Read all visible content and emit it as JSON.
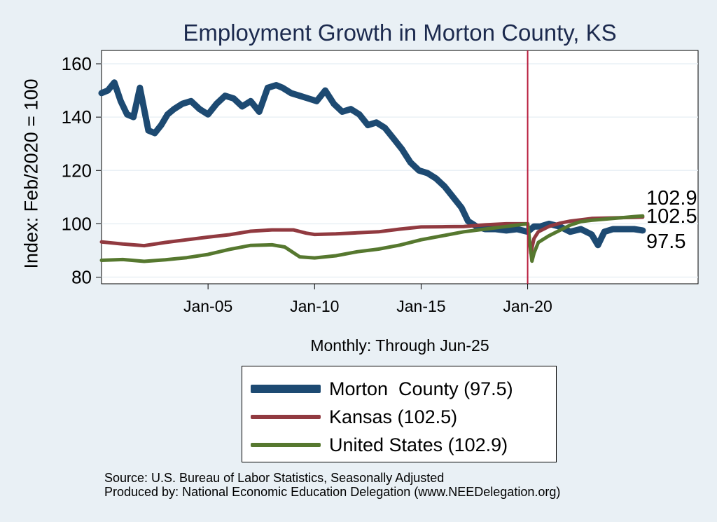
{
  "colors": {
    "background": "#e9f0f5",
    "plot_background": "#ffffff",
    "grid": "#e9f0f5",
    "morton": "#1d4a72",
    "kansas": "#913a40",
    "us": "#56782f",
    "refline": "#b81d3d"
  },
  "footer": {
    "source": "Source: U.S. Bureau of Labor Statistics, Seasonally Adjusted",
    "produced": "Produced by: National Economic Education Delegation (www.NEEDelegation.org)"
  },
  "chart_data": {
    "type": "line",
    "title": "Employment Growth in Morton  County, KS",
    "xlabel": "Monthly: Through Jun-25",
    "ylabel": "Index: Feb/2020 = 100",
    "x_start": "Jan-00",
    "x_end": "Jun-25",
    "xlim": [
      2000.0,
      2028.0
    ],
    "ylim": [
      77.5,
      165.0
    ],
    "xticks": [
      {
        "value": 2005.0,
        "label": "Jan-05"
      },
      {
        "value": 2010.0,
        "label": "Jan-10"
      },
      {
        "value": 2015.0,
        "label": "Jan-15"
      },
      {
        "value": 2020.0,
        "label": "Jan-20"
      }
    ],
    "yticks": [
      80,
      100,
      120,
      140,
      160
    ],
    "reference_line_x": 2020.0,
    "grid": true,
    "series": [
      {
        "name": "Morton  County",
        "legend_label": "Morton  County (97.5)",
        "end_label": "97.5",
        "key": "morton",
        "x": [
          2000.0,
          2000.3,
          2000.6,
          2000.9,
          2001.2,
          2001.5,
          2001.8,
          2002.2,
          2002.5,
          2002.8,
          2003.1,
          2003.4,
          2003.8,
          2004.2,
          2004.6,
          2005.0,
          2005.4,
          2005.8,
          2006.2,
          2006.6,
          2007.0,
          2007.4,
          2007.8,
          2008.2,
          2008.5,
          2008.9,
          2009.3,
          2009.7,
          2010.1,
          2010.5,
          2010.9,
          2011.3,
          2011.7,
          2012.1,
          2012.5,
          2012.9,
          2013.3,
          2013.7,
          2014.1,
          2014.5,
          2014.9,
          2015.3,
          2015.7,
          2016.1,
          2016.5,
          2016.9,
          2017.2,
          2017.6,
          2018.0,
          2018.5,
          2019.0,
          2019.5,
          2020.0,
          2020.3,
          2020.6,
          2021.0,
          2021.5,
          2022.0,
          2022.5,
          2023.0,
          2023.3,
          2023.6,
          2024.0,
          2024.5,
          2025.0,
          2025.4
        ],
        "values": [
          149,
          150,
          153,
          146,
          141,
          140,
          151,
          135,
          134,
          137,
          141,
          143,
          145,
          146,
          143,
          141,
          145,
          148,
          147,
          144,
          146,
          142,
          151,
          152,
          151,
          149,
          148,
          147,
          146,
          150,
          145,
          142,
          143,
          141,
          137,
          138,
          136,
          132,
          128,
          123,
          120,
          119,
          117,
          114,
          110,
          106,
          101,
          99,
          98,
          98,
          97.5,
          98,
          97,
          99,
          99,
          100,
          99,
          97,
          98,
          96,
          92,
          97,
          98,
          98,
          98,
          97.5
        ]
      },
      {
        "name": "Kansas",
        "legend_label": "Kansas (102.5)",
        "end_label": "102.5",
        "key": "kansas",
        "x": [
          2000.0,
          2001.0,
          2002.0,
          2003.0,
          2004.0,
          2005.0,
          2006.0,
          2007.0,
          2008.0,
          2009.0,
          2009.6,
          2010.0,
          2011.0,
          2012.0,
          2013.0,
          2014.0,
          2015.0,
          2016.0,
          2017.0,
          2018.0,
          2019.0,
          2020.0,
          2020.15,
          2020.3,
          2020.5,
          2021.0,
          2021.5,
          2022.0,
          2022.5,
          2023.0,
          2024.0,
          2025.0,
          2025.4
        ],
        "values": [
          93.2,
          92.4,
          91.8,
          93.0,
          94.0,
          95.0,
          95.9,
          97.2,
          97.7,
          97.7,
          96.5,
          96.0,
          96.2,
          96.6,
          97.0,
          98.0,
          98.8,
          98.9,
          99.0,
          99.6,
          100.0,
          100.0,
          89.0,
          94.5,
          97.0,
          99.0,
          100.2,
          101.0,
          101.5,
          102.0,
          102.2,
          102.4,
          102.5
        ]
      },
      {
        "name": "United States",
        "legend_label": "United States (102.9)",
        "end_label": "102.9",
        "key": "us",
        "x": [
          2000.0,
          2001.0,
          2002.0,
          2003.0,
          2004.0,
          2005.0,
          2006.0,
          2007.0,
          2008.0,
          2008.6,
          2009.3,
          2010.0,
          2011.0,
          2012.0,
          2013.0,
          2014.0,
          2015.0,
          2016.0,
          2017.0,
          2018.0,
          2019.0,
          2020.0,
          2020.2,
          2020.3,
          2020.5,
          2020.8,
          2021.0,
          2021.5,
          2022.0,
          2022.5,
          2023.0,
          2024.0,
          2025.0,
          2025.4
        ],
        "values": [
          86.3,
          86.6,
          85.9,
          86.5,
          87.3,
          88.5,
          90.4,
          91.9,
          92.1,
          91.3,
          87.6,
          87.2,
          88.0,
          89.5,
          90.5,
          92.0,
          94.0,
          95.5,
          97.0,
          98.0,
          99.0,
          100.0,
          86.0,
          89.0,
          93.0,
          94.5,
          95.5,
          97.5,
          99.5,
          100.8,
          101.3,
          102.0,
          102.7,
          102.9
        ]
      }
    ]
  }
}
